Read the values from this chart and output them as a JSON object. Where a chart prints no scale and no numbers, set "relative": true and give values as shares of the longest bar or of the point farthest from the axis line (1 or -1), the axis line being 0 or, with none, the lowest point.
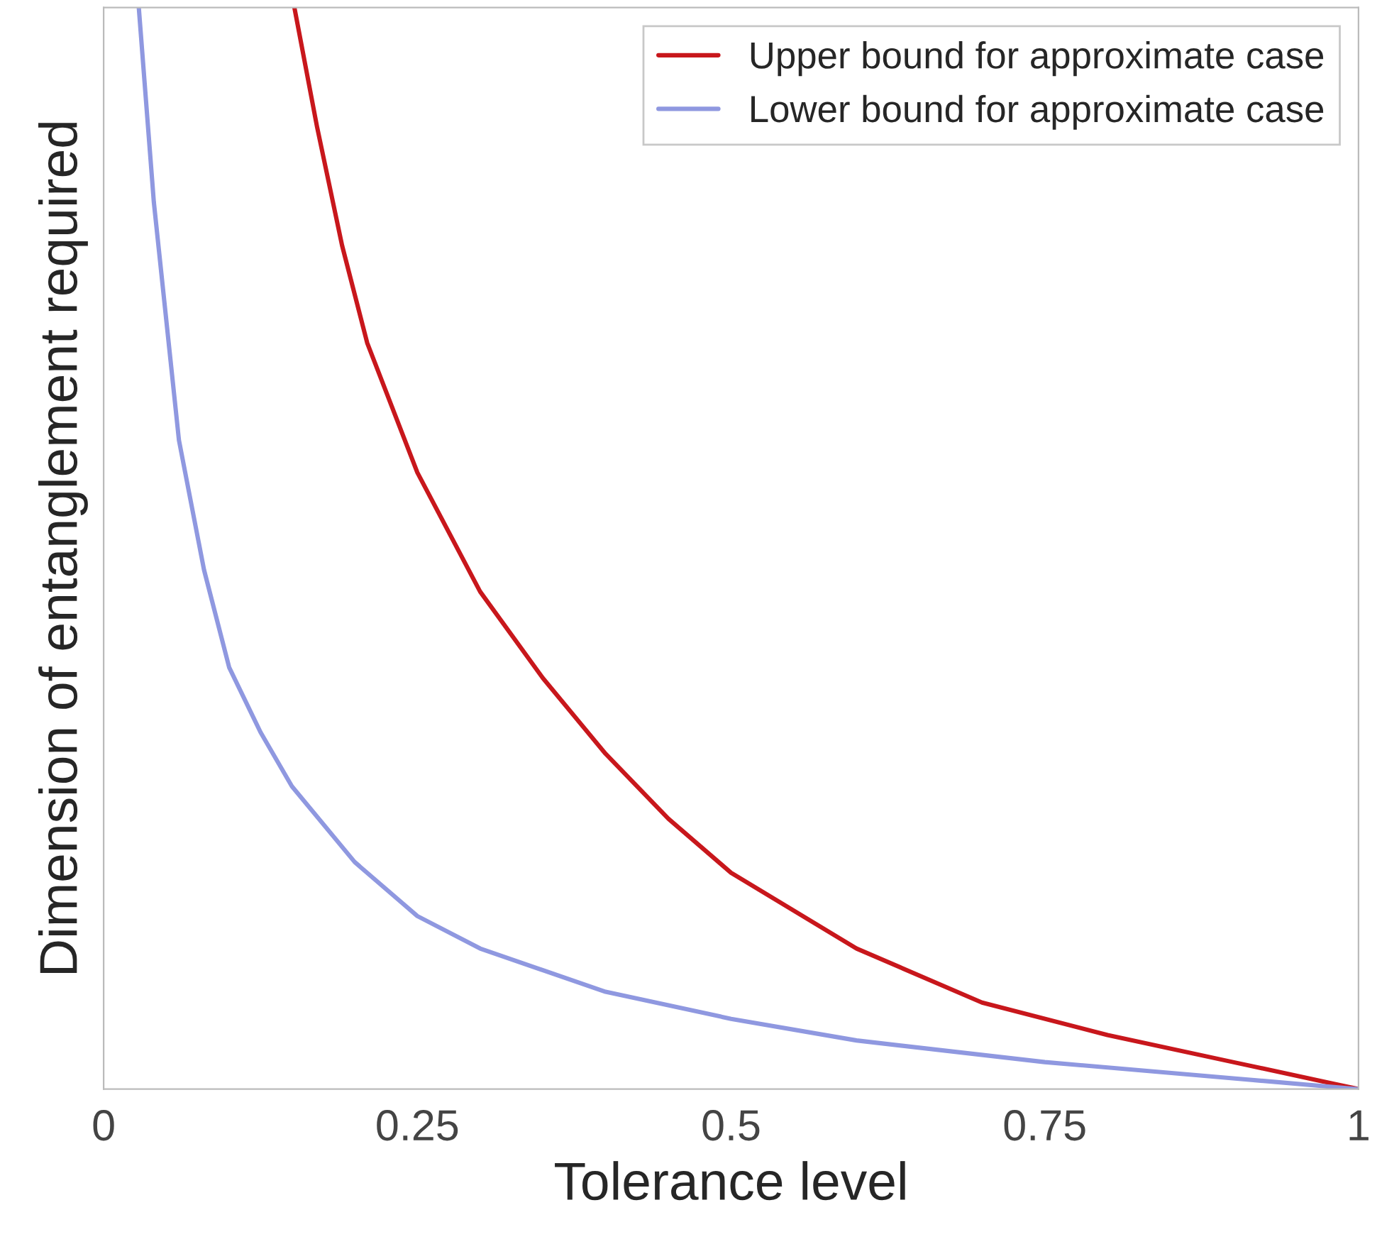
{
  "chart_data": {
    "type": "line",
    "xlabel": "Tolerance level",
    "ylabel": "Dimension of entanglement required",
    "relative": true,
    "xlim": [
      0,
      1
    ],
    "xticks": [
      0,
      0.25,
      0.5,
      0.75,
      1
    ],
    "legend": "top right",
    "grid": false,
    "series": [
      {
        "name": "Upper bound for approximate case",
        "color": "#c8171c",
        "x": [
          0.152,
          0.17,
          0.19,
          0.21,
          0.25,
          0.3,
          0.35,
          0.4,
          0.45,
          0.5,
          0.6,
          0.7,
          0.8,
          0.9,
          1.0
        ],
        "values": [
          1.0,
          0.89,
          0.78,
          0.69,
          0.57,
          0.46,
          0.38,
          0.31,
          0.25,
          0.2,
          0.13,
          0.08,
          0.05,
          0.025,
          0
        ]
      },
      {
        "name": "Lower bound for approximate case",
        "color": "#8f98e0",
        "x": [
          0.028,
          0.04,
          0.06,
          0.08,
          0.1,
          0.125,
          0.15,
          0.2,
          0.25,
          0.3,
          0.4,
          0.5,
          0.6,
          0.75,
          0.9,
          1.0
        ],
        "values": [
          1.0,
          0.82,
          0.6,
          0.48,
          0.39,
          0.33,
          0.28,
          0.21,
          0.16,
          0.13,
          0.09,
          0.065,
          0.045,
          0.025,
          0.01,
          0
        ]
      }
    ]
  }
}
